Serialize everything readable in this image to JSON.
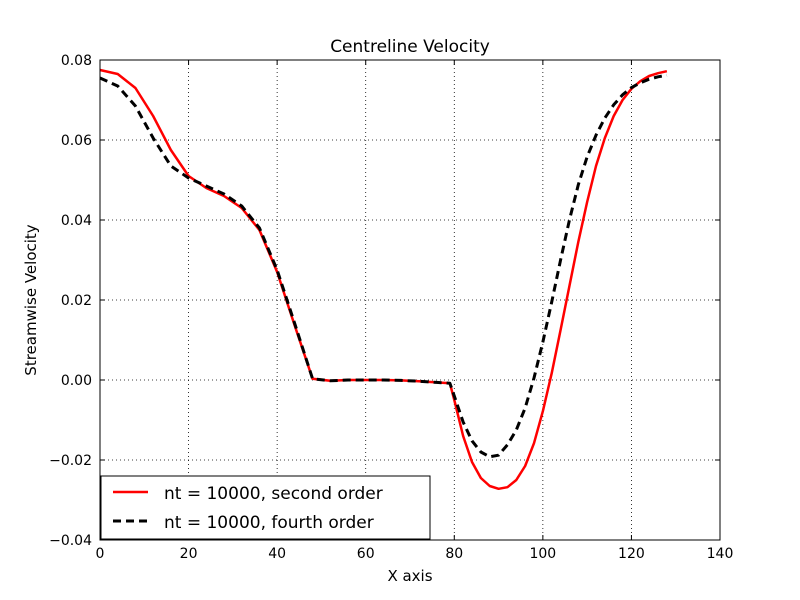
{
  "chart_data": {
    "type": "line",
    "title": "Centreline Velocity",
    "xlabel": "X axis",
    "ylabel": "Streamwise Velocity",
    "xlim": [
      0,
      140
    ],
    "ylim": [
      -0.04,
      0.08
    ],
    "xticks": [
      "0",
      "20",
      "40",
      "60",
      "80",
      "100",
      "120",
      "140"
    ],
    "yticks": [
      "−0.04",
      "−0.02",
      "0.00",
      "0.02",
      "0.04",
      "0.06",
      "0.08"
    ],
    "grid": true,
    "legend_position": "lower-left",
    "series": [
      {
        "name": "nt = 10000, second order",
        "color": "#ff0000",
        "style": "solid",
        "x": [
          0,
          4,
          8,
          12,
          16,
          20,
          24,
          28,
          32,
          36,
          40,
          44,
          48,
          52,
          56,
          60,
          64,
          68,
          72,
          76,
          79,
          80,
          82,
          84,
          86,
          88,
          90,
          92,
          94,
          96,
          98,
          100,
          102,
          104,
          106,
          108,
          110,
          112,
          114,
          116,
          118,
          120,
          122,
          124,
          126,
          128
        ],
        "y": [
          0.0775,
          0.0765,
          0.073,
          0.066,
          0.0575,
          0.051,
          0.048,
          0.046,
          0.043,
          0.0375,
          0.027,
          0.0135,
          0.0003,
          -0.0002,
          0.0,
          0.0,
          0.0,
          -0.0001,
          -0.0003,
          -0.0006,
          -0.0008,
          -0.005,
          -0.014,
          -0.0205,
          -0.0245,
          -0.0265,
          -0.0272,
          -0.0268,
          -0.025,
          -0.0215,
          -0.0158,
          -0.0078,
          0.0017,
          0.0125,
          0.0235,
          0.0345,
          0.0445,
          0.0535,
          0.0605,
          0.066,
          0.07,
          0.0728,
          0.0747,
          0.076,
          0.0767,
          0.0772
        ]
      },
      {
        "name": "nt = 10000, fourth order",
        "color": "#000000",
        "style": "dashed",
        "x": [
          0,
          4,
          8,
          12,
          16,
          20,
          24,
          28,
          32,
          36,
          40,
          44,
          48,
          52,
          56,
          60,
          64,
          68,
          72,
          76,
          79,
          80,
          82,
          84,
          86,
          88,
          90,
          92,
          94,
          96,
          98,
          100,
          102,
          104,
          106,
          108,
          110,
          112,
          114,
          116,
          118,
          120,
          122,
          124,
          126,
          128
        ],
        "y": [
          0.0755,
          0.0735,
          0.0685,
          0.0605,
          0.0535,
          0.0505,
          0.0485,
          0.0465,
          0.0435,
          0.038,
          0.0275,
          0.014,
          0.0003,
          -0.0002,
          0.0,
          0.0,
          0.0,
          -0.0001,
          -0.0003,
          -0.0006,
          -0.0008,
          -0.004,
          -0.0105,
          -0.0152,
          -0.018,
          -0.0192,
          -0.0188,
          -0.0162,
          -0.0125,
          -0.007,
          0.0005,
          0.0095,
          0.0195,
          0.03,
          0.04,
          0.0488,
          0.0558,
          0.0612,
          0.0655,
          0.0688,
          0.0713,
          0.0731,
          0.0743,
          0.0752,
          0.0758,
          0.0762
        ]
      }
    ]
  }
}
